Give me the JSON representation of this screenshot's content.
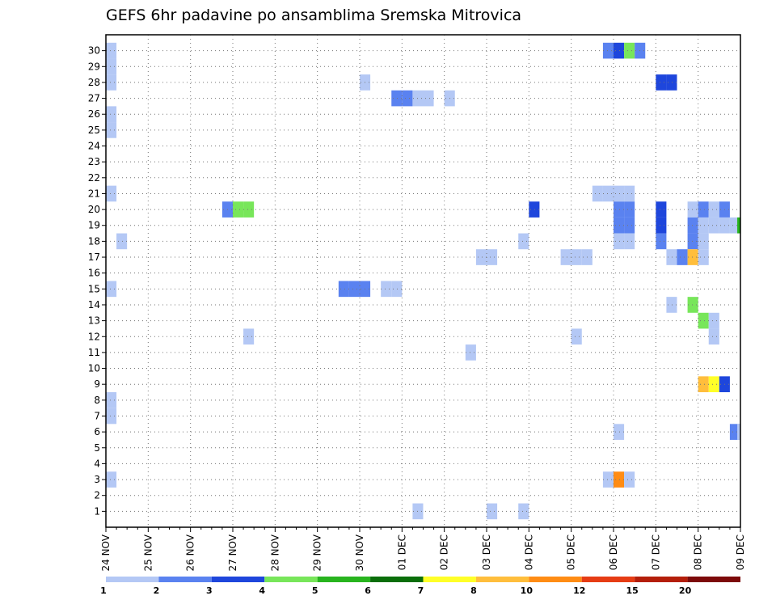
{
  "chart_data": {
    "type": "heatmap",
    "title": "GEFS 6hr padavine po ansamblima Sremska Mitrovica",
    "xlabel": "",
    "ylabel": "",
    "x_unit": "6-hour step",
    "x_range": [
      0,
      60
    ],
    "y_range": [
      0,
      31
    ],
    "x_ticks": [
      {
        "step": 0,
        "label": "24 NOV"
      },
      {
        "step": 4,
        "label": "25 NOV"
      },
      {
        "step": 8,
        "label": "26 NOV"
      },
      {
        "step": 12,
        "label": "27 NOV"
      },
      {
        "step": 16,
        "label": "28 NOV"
      },
      {
        "step": 20,
        "label": "29 NOV"
      },
      {
        "step": 24,
        "label": "30 NOV"
      },
      {
        "step": 28,
        "label": "01 DEC"
      },
      {
        "step": 32,
        "label": "02 DEC"
      },
      {
        "step": 36,
        "label": "03 DEC"
      },
      {
        "step": 40,
        "label": "04 DEC"
      },
      {
        "step": 44,
        "label": "05 DEC"
      },
      {
        "step": 48,
        "label": "06 DEC"
      },
      {
        "step": 52,
        "label": "07 DEC"
      },
      {
        "step": 56,
        "label": "08 DEC"
      },
      {
        "step": 60,
        "label": "09 DEC"
      }
    ],
    "y_ticks": [
      "1",
      "2",
      "3",
      "4",
      "5",
      "6",
      "7",
      "8",
      "9",
      "10",
      "11",
      "12",
      "13",
      "14",
      "15",
      "16",
      "17",
      "18",
      "19",
      "20",
      "21",
      "22",
      "23",
      "24",
      "25",
      "26",
      "27",
      "28",
      "29",
      "30"
    ],
    "grid": true,
    "colorbar": {
      "placement": "bottom",
      "colors": [
        "#b4c8f5",
        "#5a82f0",
        "#1e46dc",
        "#78e65a",
        "#28b41e",
        "#0a6e0a",
        "#ffff28",
        "#ffbe3c",
        "#ff8c14",
        "#e63c14",
        "#b41e0a",
        "#7d0a0a"
      ],
      "labels": [
        "1",
        "2",
        "3",
        "4",
        "5",
        "6",
        "7",
        "8",
        "10",
        "12",
        "15",
        "20"
      ]
    },
    "cells": [
      {
        "x": 0.5,
        "m": 30,
        "c": 0
      },
      {
        "x": 0.5,
        "m": 29,
        "c": 0
      },
      {
        "x": 0.5,
        "m": 28,
        "c": 0
      },
      {
        "x": 0.5,
        "m": 26,
        "c": 0
      },
      {
        "x": 0.5,
        "m": 25,
        "c": 0
      },
      {
        "x": 0.5,
        "m": 21,
        "c": 0
      },
      {
        "x": 1.5,
        "m": 18,
        "c": 0
      },
      {
        "x": 0.5,
        "m": 15,
        "c": 0
      },
      {
        "x": 0.5,
        "m": 8,
        "c": 0
      },
      {
        "x": 0.5,
        "m": 7,
        "c": 0
      },
      {
        "x": 0.5,
        "m": 3,
        "c": 0
      },
      {
        "x": 11.5,
        "m": 20,
        "c": 1
      },
      {
        "x": 12.5,
        "m": 20,
        "c": 3
      },
      {
        "x": 13.5,
        "m": 20,
        "c": 3
      },
      {
        "x": 13.5,
        "m": 12,
        "c": 0
      },
      {
        "x": 24.5,
        "m": 28,
        "c": 0
      },
      {
        "x": 22.5,
        "m": 15,
        "c": 1
      },
      {
        "x": 23.5,
        "m": 15,
        "c": 1
      },
      {
        "x": 24.5,
        "m": 15,
        "c": 1
      },
      {
        "x": 26.5,
        "m": 15,
        "c": 0
      },
      {
        "x": 27.5,
        "m": 15,
        "c": 0
      },
      {
        "x": 27.5,
        "m": 27,
        "c": 1
      },
      {
        "x": 28.5,
        "m": 27,
        "c": 1
      },
      {
        "x": 29.5,
        "m": 27,
        "c": 0
      },
      {
        "x": 30.5,
        "m": 27,
        "c": 0
      },
      {
        "x": 32.5,
        "m": 27,
        "c": 0
      },
      {
        "x": 29.5,
        "m": 1,
        "c": 0
      },
      {
        "x": 34.5,
        "m": 11,
        "c": 0
      },
      {
        "x": 35.5,
        "m": 17,
        "c": 0
      },
      {
        "x": 36.5,
        "m": 17,
        "c": 0
      },
      {
        "x": 36.5,
        "m": 1,
        "c": 0
      },
      {
        "x": 39.5,
        "m": 18,
        "c": 0
      },
      {
        "x": 39.5,
        "m": 1,
        "c": 0
      },
      {
        "x": 40.5,
        "m": 20,
        "c": 2
      },
      {
        "x": 43.5,
        "m": 17,
        "c": 0
      },
      {
        "x": 44.5,
        "m": 17,
        "c": 0
      },
      {
        "x": 45.5,
        "m": 17,
        "c": 0
      },
      {
        "x": 44.5,
        "m": 12,
        "c": 0
      },
      {
        "x": 47.5,
        "m": 30,
        "c": 1
      },
      {
        "x": 48.5,
        "m": 30,
        "c": 2
      },
      {
        "x": 49.5,
        "m": 30,
        "c": 3
      },
      {
        "x": 50.5,
        "m": 30,
        "c": 1
      },
      {
        "x": 46.5,
        "m": 21,
        "c": 0
      },
      {
        "x": 47.5,
        "m": 21,
        "c": 0
      },
      {
        "x": 48.5,
        "m": 21,
        "c": 0
      },
      {
        "x": 49.5,
        "m": 21,
        "c": 0
      },
      {
        "x": 48.5,
        "m": 20,
        "c": 1
      },
      {
        "x": 49.5,
        "m": 20,
        "c": 1
      },
      {
        "x": 48.5,
        "m": 19,
        "c": 1
      },
      {
        "x": 49.5,
        "m": 19,
        "c": 1
      },
      {
        "x": 48.5,
        "m": 18,
        "c": 0
      },
      {
        "x": 49.5,
        "m": 18,
        "c": 0
      },
      {
        "x": 48.5,
        "m": 6,
        "c": 0
      },
      {
        "x": 47.5,
        "m": 3,
        "c": 0
      },
      {
        "x": 48.5,
        "m": 3,
        "c": 8
      },
      {
        "x": 49.5,
        "m": 3,
        "c": 0
      },
      {
        "x": 52.5,
        "m": 28,
        "c": 2
      },
      {
        "x": 53.5,
        "m": 28,
        "c": 2
      },
      {
        "x": 52.5,
        "m": 20,
        "c": 2
      },
      {
        "x": 52.5,
        "m": 19,
        "c": 2
      },
      {
        "x": 52.5,
        "m": 18,
        "c": 1
      },
      {
        "x": 53.5,
        "m": 17,
        "c": 0
      },
      {
        "x": 54.5,
        "m": 17,
        "c": 1
      },
      {
        "x": 55.5,
        "m": 20,
        "c": 0
      },
      {
        "x": 55.5,
        "m": 19,
        "c": 1
      },
      {
        "x": 55.5,
        "m": 18,
        "c": 1
      },
      {
        "x": 55.5,
        "m": 17,
        "c": 7
      },
      {
        "x": 56.5,
        "m": 20,
        "c": 1
      },
      {
        "x": 56.5,
        "m": 19,
        "c": 0
      },
      {
        "x": 56.5,
        "m": 18,
        "c": 0
      },
      {
        "x": 56.5,
        "m": 17,
        "c": 0
      },
      {
        "x": 57.5,
        "m": 20,
        "c": 0
      },
      {
        "x": 57.5,
        "m": 19,
        "c": 0
      },
      {
        "x": 58.5,
        "m": 20,
        "c": 1
      },
      {
        "x": 58.5,
        "m": 19,
        "c": 0
      },
      {
        "x": 59.5,
        "m": 19,
        "c": 0
      },
      {
        "x": 60.2,
        "m": 19,
        "c": 4
      },
      {
        "x": 53.5,
        "m": 14,
        "c": 0
      },
      {
        "x": 55.5,
        "m": 14,
        "c": 3
      },
      {
        "x": 56.5,
        "m": 13,
        "c": 3
      },
      {
        "x": 57.5,
        "m": 13,
        "c": 0
      },
      {
        "x": 57.5,
        "m": 12,
        "c": 0
      },
      {
        "x": 56.5,
        "m": 9,
        "c": 7
      },
      {
        "x": 57.5,
        "m": 9,
        "c": 6
      },
      {
        "x": 58.5,
        "m": 9,
        "c": 2
      },
      {
        "x": 59.5,
        "m": 6,
        "c": 1
      },
      {
        "x": 60.2,
        "m": 6,
        "c": 0
      }
    ]
  }
}
